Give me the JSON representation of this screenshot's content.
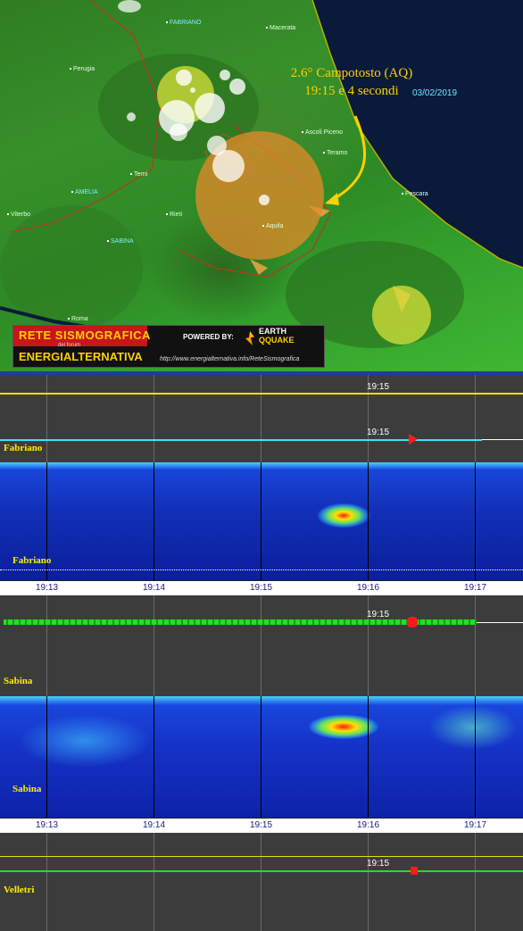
{
  "map": {
    "cities": [
      {
        "name": "FABRIANO",
        "cls": "cyan"
      },
      {
        "name": "Macerata",
        "cls": ""
      },
      {
        "name": "Perugia",
        "cls": ""
      },
      {
        "name": "Ascoli Piceno",
        "cls": ""
      },
      {
        "name": "Teramo",
        "cls": ""
      },
      {
        "name": "Terni",
        "cls": ""
      },
      {
        "name": "AMELIA",
        "cls": "cyan"
      },
      {
        "name": "Pescara",
        "cls": ""
      },
      {
        "name": "Viterbo",
        "cls": ""
      },
      {
        "name": "Rieti",
        "cls": ""
      },
      {
        "name": "Aquila",
        "cls": ""
      },
      {
        "name": "SABINA",
        "cls": "cyan"
      },
      {
        "name": "Roma",
        "cls": ""
      }
    ],
    "event_line1": "2.6° Campotosto (AQ)",
    "event_line2": "19:15 e 4 secondi",
    "event_date": "03/02/2019",
    "logo": {
      "title": "RETE SISMOGRAFICA",
      "subtitle": "del forum",
      "org": "ENERGIALTERNATIVA",
      "powered": "POWERED BY:",
      "brand_top": "EARTH",
      "brand_bottom": "QQUAKE",
      "url": "http://www.energialternativa.info/ReteSismografica"
    },
    "colors": {
      "quake_main": "#e58a2a",
      "quake_yellow": "#d8e23a",
      "arrow": "#ffd000"
    }
  },
  "seismo": {
    "marker_time": "19:15",
    "station_fabriano": "Fabriano",
    "station_sabina": "Sabina",
    "station_velletri": "Velletri",
    "axis_ticks": [
      "19:13",
      "19:14",
      "19:15",
      "19:16",
      "19:17"
    ],
    "colors": {
      "yellow_trace": "#e7e200",
      "cyan_trace": "#38e4ff",
      "green_trace": "#22e022",
      "event_marker": "#ff1a1a"
    }
  }
}
